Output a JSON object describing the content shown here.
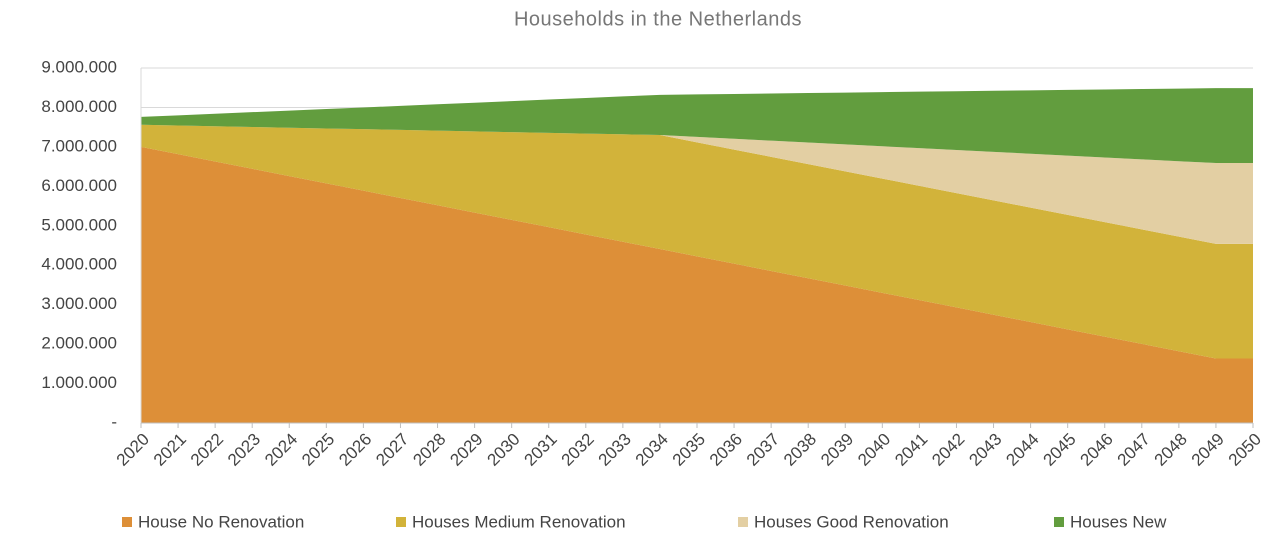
{
  "chart_data": {
    "type": "stacked_area",
    "title": "Households in the Netherlands",
    "categories": [
      "2020",
      "2021",
      "2022",
      "2023",
      "2024",
      "2025",
      "2026",
      "2027",
      "2028",
      "2029",
      "2030",
      "2031",
      "2032",
      "2033",
      "2034",
      "2035",
      "2036",
      "2037",
      "2038",
      "2039",
      "2040",
      "2041",
      "2042",
      "2043",
      "2044",
      "2045",
      "2046",
      "2047",
      "2048",
      "2049",
      "2050"
    ],
    "series": [
      {
        "name": "House No Renovation",
        "color": "#dd8f38",
        "values": [
          7000000,
          6815000,
          6630000,
          6445000,
          6260000,
          6075000,
          5890000,
          5705000,
          5520000,
          5335000,
          5150000,
          4965000,
          4780000,
          4595000,
          4410000,
          4225000,
          4040000,
          3855000,
          3670000,
          3485000,
          3300000,
          3115000,
          2930000,
          2745000,
          2560000,
          2375000,
          2190000,
          2005000,
          1820000,
          1635000,
          1635000
        ]
      },
      {
        "name": "Houses Medium Renovation",
        "color": "#d2b33a",
        "values": [
          560000,
          726000,
          893000,
          1059000,
          1226000,
          1392000,
          1559000,
          1725000,
          1891000,
          2058000,
          2224000,
          2391000,
          2557000,
          2724000,
          2890000,
          2891000,
          2892000,
          2893000,
          2894000,
          2895000,
          2896000,
          2897000,
          2898000,
          2899000,
          2900000,
          2901000,
          2902000,
          2903000,
          2904000,
          2905000,
          2905000
        ]
      },
      {
        "name": "Houses Good Renovation",
        "color": "#e3cfa3",
        "values": [
          0,
          0,
          0,
          0,
          0,
          0,
          0,
          0,
          0,
          0,
          0,
          0,
          0,
          0,
          0,
          137000,
          273000,
          410000,
          547000,
          683000,
          820000,
          957000,
          1093000,
          1230000,
          1367000,
          1503000,
          1640000,
          1777000,
          1913000,
          2050000,
          2050000
        ]
      },
      {
        "name": "Houses New",
        "color": "#629d3e",
        "values": [
          200000,
          259000,
          317000,
          376000,
          434000,
          493000,
          551000,
          610000,
          669000,
          727000,
          786000,
          844000,
          903000,
          961000,
          1020000,
          1079000,
          1137000,
          1196000,
          1255000,
          1313000,
          1372000,
          1431000,
          1489000,
          1548000,
          1607000,
          1665000,
          1724000,
          1783000,
          1841000,
          1900000,
          1900000
        ]
      }
    ],
    "ylim": [
      0,
      9000000
    ],
    "yticks": [
      {
        "value": 0,
        "label": "-"
      },
      {
        "value": 1000000,
        "label": "1.000.000"
      },
      {
        "value": 2000000,
        "label": "2.000.000"
      },
      {
        "value": 3000000,
        "label": "3.000.000"
      },
      {
        "value": 4000000,
        "label": "4.000.000"
      },
      {
        "value": 5000000,
        "label": "5.000.000"
      },
      {
        "value": 6000000,
        "label": "6.000.000"
      },
      {
        "value": 7000000,
        "label": "7.000.000"
      },
      {
        "value": 8000000,
        "label": "8.000.000"
      },
      {
        "value": 9000000,
        "label": "9.000.000"
      }
    ],
    "grid": true,
    "legend": "bottom"
  }
}
